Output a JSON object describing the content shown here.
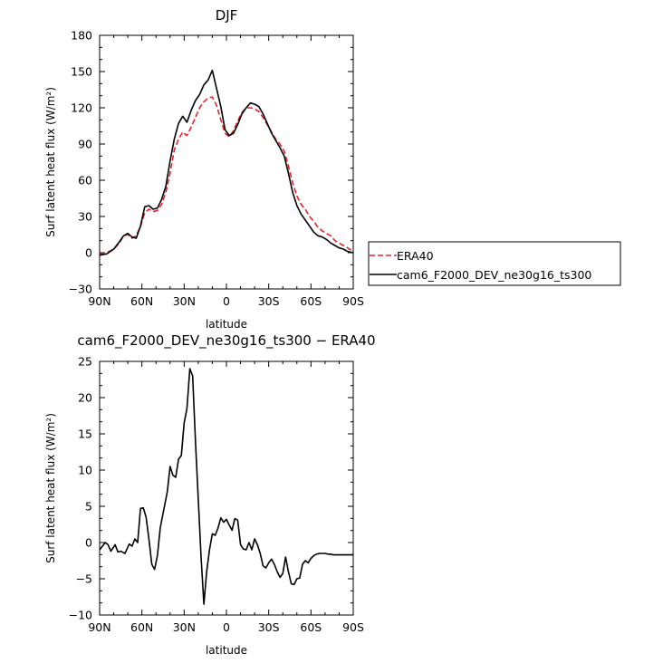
{
  "chart_data": [
    {
      "type": "line",
      "title": "DJF",
      "xlabel": "latitude",
      "ylabel": "Surf latent heat flux (W/m²)",
      "xlim": [
        -90,
        90
      ],
      "ylim": [
        -30,
        180
      ],
      "x_ticks": [
        -90,
        -60,
        -30,
        0,
        30,
        60,
        90
      ],
      "x_tick_labels": [
        "90N",
        "60N",
        "30N",
        "0",
        "30S",
        "60S",
        "90S"
      ],
      "y_ticks": [
        -30,
        0,
        30,
        60,
        90,
        120,
        150,
        180
      ],
      "y_tick_labels": [
        "−30",
        "0",
        "30",
        "60",
        "90",
        "120",
        "150",
        "180"
      ],
      "legend_position": "right",
      "series": [
        {
          "name": "ERA40",
          "color": "#e8202a",
          "dash": "dashed",
          "x": [
            -90,
            -85,
            -80,
            -76,
            -73,
            -70,
            -67,
            -64,
            -61,
            -58,
            -55,
            -52,
            -49,
            -46,
            -43,
            -40,
            -37,
            -34,
            -31,
            -28,
            -25,
            -22,
            -19,
            -16,
            -13,
            -10,
            -7,
            -4,
            -1,
            2,
            5,
            8,
            11,
            14,
            17,
            20,
            23,
            26,
            29,
            32,
            35,
            38,
            41,
            44,
            47,
            50,
            53,
            56,
            59,
            62,
            65,
            68,
            71,
            74,
            77,
            80,
            83,
            86,
            90
          ],
          "y": [
            -1,
            0,
            3,
            8,
            14,
            15,
            12,
            14,
            22,
            33,
            36,
            34,
            35,
            40,
            50,
            66,
            85,
            94,
            100,
            97,
            104,
            112,
            120,
            125,
            128,
            129,
            122,
            110,
            99,
            96,
            101,
            109,
            116,
            120,
            120,
            119,
            117,
            112,
            106,
            100,
            94,
            90,
            84,
            72,
            58,
            47,
            40,
            36,
            30,
            26,
            21,
            18,
            16,
            14,
            10,
            8,
            6,
            4,
            1
          ]
        },
        {
          "name": "cam6_F2000_DEV_ne30g16_ts300",
          "color": "#000000",
          "dash": "solid",
          "x": [
            -90,
            -85,
            -80,
            -76,
            -73,
            -70,
            -67,
            -64,
            -61,
            -58,
            -55,
            -52,
            -49,
            -46,
            -43,
            -40,
            -37,
            -34,
            -31,
            -28,
            -25,
            -22,
            -19,
            -16,
            -13,
            -10,
            -7,
            -4,
            -1,
            2,
            5,
            8,
            11,
            14,
            17,
            20,
            23,
            26,
            29,
            32,
            35,
            38,
            41,
            44,
            47,
            50,
            53,
            56,
            59,
            62,
            65,
            68,
            71,
            74,
            77,
            80,
            83,
            86,
            90
          ],
          "y": [
            -2,
            -1,
            3,
            9,
            14,
            16,
            13,
            12,
            22,
            38,
            39,
            36,
            37,
            44,
            55,
            76,
            94,
            107,
            113,
            108,
            118,
            126,
            131,
            139,
            143,
            151,
            136,
            121,
            102,
            97,
            99,
            106,
            115,
            120,
            124,
            123,
            121,
            115,
            107,
            99,
            93,
            87,
            80,
            66,
            50,
            39,
            32,
            27,
            22,
            17,
            14,
            13,
            11,
            8,
            6,
            4,
            3,
            1,
            0
          ]
        }
      ]
    },
    {
      "type": "line",
      "title": "cam6_F2000_DEV_ne30g16_ts300 − ERA40",
      "xlabel": "latitude",
      "ylabel": "Surf latent heat flux (W/m²)",
      "xlim": [
        -90,
        90
      ],
      "ylim": [
        -10,
        25
      ],
      "x_ticks": [
        -90,
        -60,
        -30,
        0,
        30,
        60,
        90
      ],
      "x_tick_labels": [
        "90N",
        "60N",
        "30N",
        "0",
        "30S",
        "60S",
        "90S"
      ],
      "y_ticks": [
        -10,
        -5,
        0,
        5,
        10,
        15,
        20,
        25
      ],
      "y_tick_labels": [
        "−10",
        "−5",
        "0",
        "5",
        "10",
        "15",
        "20",
        "25"
      ],
      "series": [
        {
          "color": "#000000",
          "dash": "solid",
          "x": [
            -90,
            -88,
            -86,
            -84,
            -82,
            -79,
            -77,
            -75,
            -72,
            -69,
            -67,
            -65,
            -63,
            -61,
            -59,
            -57,
            -55,
            -53,
            -51,
            -49,
            -47,
            -45,
            -42,
            -40,
            -38,
            -36,
            -34,
            -32,
            -30,
            -28,
            -26,
            -24,
            -22,
            -20,
            -18,
            -16,
            -14,
            -12,
            -10,
            -8,
            -6,
            -4,
            -2,
            0,
            2,
            4,
            6,
            8,
            10,
            12,
            14,
            16,
            18,
            20,
            22,
            24,
            26,
            28,
            30,
            32,
            34,
            36,
            38,
            40,
            42,
            44,
            46,
            48,
            50,
            52,
            54,
            56,
            58,
            60,
            62,
            64,
            66,
            68,
            70,
            72,
            74,
            76,
            78,
            80,
            82,
            84,
            86,
            88,
            90
          ],
          "y": [
            -1,
            -0.5,
            0,
            -0.3,
            -1.2,
            -0.3,
            -1.3,
            -1.2,
            -1.5,
            -0.2,
            -0.5,
            0.5,
            0,
            4.7,
            4.8,
            3.5,
            0.5,
            -3,
            -3.7,
            -1.8,
            2,
            4,
            7,
            10.5,
            9.3,
            9.0,
            11.5,
            12.0,
            16.5,
            18.5,
            24,
            23,
            14,
            6,
            -2,
            -8.5,
            -4,
            -1,
            1.2,
            1.0,
            2.0,
            3.4,
            2.8,
            3.2,
            2.4,
            1.7,
            3.3,
            3.1,
            -0.3,
            -0.9,
            -1.0,
            0,
            -1,
            0.5,
            -0.3,
            -1.5,
            -3.2,
            -3.5,
            -2.8,
            -2.3,
            -3.0,
            -4.0,
            -4.8,
            -4.3,
            -2.0,
            -4.0,
            -5.7,
            -5.8,
            -5.0,
            -4.9,
            -3.0,
            -2.5,
            -2.8,
            -2.2,
            -1.8,
            -1.6,
            -1.5,
            -1.5,
            -1.5,
            -1.6,
            -1.6,
            -1.7,
            -1.7,
            -1.7,
            -1.7,
            -1.7,
            -1.7,
            -1.7,
            -1.7
          ]
        }
      ]
    }
  ]
}
